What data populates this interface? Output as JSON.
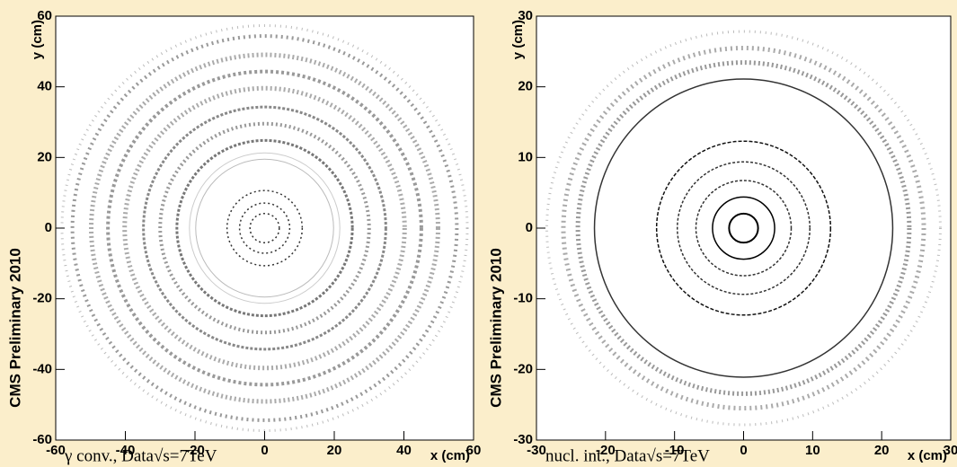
{
  "chart_data": [
    {
      "type": "density",
      "xlim": [
        -60,
        60
      ],
      "ylim": [
        -60,
        60
      ],
      "xticks": [
        -60,
        -40,
        -20,
        0,
        20,
        40,
        60
      ],
      "yticks": [
        -60,
        -40,
        -20,
        0,
        20,
        40,
        60
      ],
      "xlabel": "x (cm)",
      "ylabel": "y (cm)",
      "annotation": "CMS Preliminary 2010",
      "caption": "γ conv., Data√s=7TeV"
    },
    {
      "type": "density",
      "xlim": [
        -30,
        30
      ],
      "ylim": [
        -30,
        30
      ],
      "xticks": [
        -30,
        -20,
        -10,
        0,
        10,
        20,
        30
      ],
      "yticks": [
        -30,
        -20,
        -10,
        0,
        10,
        20,
        30
      ],
      "xlabel": "x (cm)",
      "ylabel": "y (cm)",
      "annotation": "CMS Preliminary 2010",
      "caption": "nucl. int., Data√s=7TeV"
    }
  ]
}
